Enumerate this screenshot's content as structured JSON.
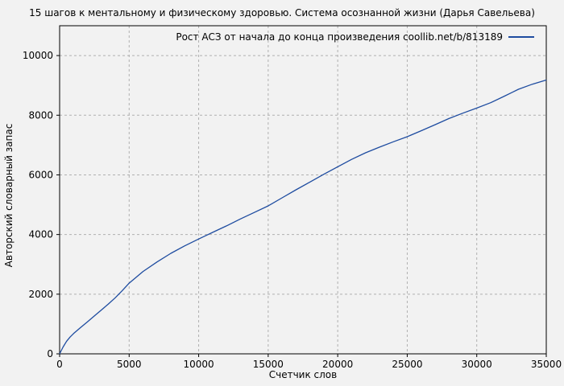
{
  "colors": {
    "background": "#f2f2f2",
    "plot_border": "#000000",
    "grid": "#b0b0b0",
    "line": "#1e4ca0",
    "text": "#000000"
  },
  "chart_data": {
    "type": "line",
    "title": "15 шагов к ментальному и физическому здоровью. Система осознанной жизни (Дарья Савельева)",
    "legend": "Рост АСЗ от начала до конца произведения coollib.net/b/813189",
    "legend_position": "top-right-inside",
    "xlabel": "Счетчик слов",
    "ylabel": "Авторский словарный запас",
    "xlim": [
      0,
      35000
    ],
    "ylim": [
      0,
      11000
    ],
    "xticks": [
      0,
      5000,
      10000,
      15000,
      20000,
      25000,
      30000,
      35000
    ],
    "yticks": [
      0,
      2000,
      4000,
      6000,
      8000,
      10000
    ],
    "grid": true,
    "grid_style": "dashed",
    "series": [
      {
        "name": "Рост АСЗ от начала до конца произведения coollib.net/b/813189",
        "color": "#1e4ca0",
        "x": [
          0,
          250,
          500,
          750,
          1000,
          1500,
          2000,
          2500,
          3000,
          3500,
          4000,
          4500,
          5000,
          6000,
          7000,
          8000,
          9000,
          10000,
          11000,
          12000,
          13000,
          14000,
          15000,
          16000,
          17000,
          18000,
          19000,
          20000,
          21000,
          22000,
          23000,
          24000,
          25000,
          26000,
          27000,
          28000,
          29000,
          30000,
          31000,
          32000,
          33000,
          34000,
          35000
        ],
        "y": [
          0,
          230,
          420,
          560,
          680,
          880,
          1070,
          1270,
          1470,
          1670,
          1880,
          2120,
          2370,
          2760,
          3080,
          3370,
          3620,
          3850,
          4070,
          4290,
          4520,
          4740,
          4960,
          5230,
          5500,
          5760,
          6020,
          6270,
          6520,
          6740,
          6930,
          7110,
          7280,
          7480,
          7680,
          7890,
          8070,
          8240,
          8420,
          8640,
          8870,
          9040,
          9180
        ]
      }
    ]
  }
}
